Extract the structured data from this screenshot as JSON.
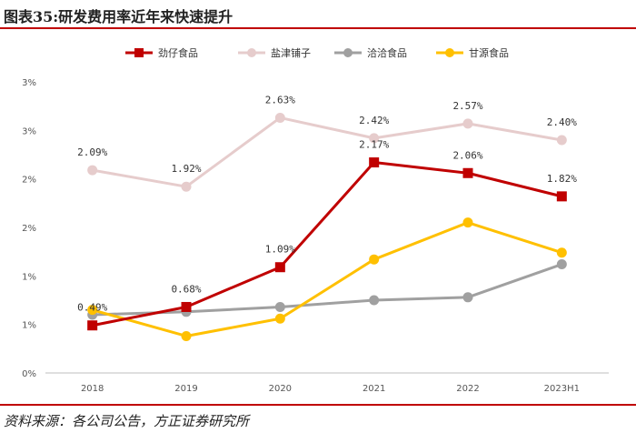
{
  "header": {
    "title": "图表35:研发费用率近年来快速提升"
  },
  "footer": {
    "source": "资料来源：各公司公告，方正证券研究所"
  },
  "chart_data": {
    "type": "line",
    "title": "图表35:研发费用率近年来快速提升",
    "categories": [
      "2018",
      "2019",
      "2020",
      "2021",
      "2022",
      "2023H1"
    ],
    "y_tick_labels": [
      "0%",
      "1%",
      "1%",
      "2%",
      "2%",
      "3%",
      "3%"
    ],
    "ylim": [
      0,
      3.0
    ],
    "grid": false,
    "legend_position": "top",
    "series": [
      {
        "name": "劲仔食品",
        "color": "#c00000",
        "marker": "square",
        "values": [
          0.49,
          0.68,
          1.09,
          2.17,
          2.06,
          1.82
        ],
        "labels": [
          "0.49%",
          "0.68%",
          "1.09%",
          "2.17%",
          "2.06%",
          "1.82%"
        ]
      },
      {
        "name": "盐津铺子",
        "color": "#e6cccc",
        "marker": "circle",
        "values": [
          2.09,
          1.92,
          2.63,
          2.42,
          2.57,
          2.4
        ],
        "labels": [
          "2.09%",
          "1.92%",
          "2.63%",
          "2.42%",
          "2.57%",
          "2.40%"
        ]
      },
      {
        "name": "洽洽食品",
        "color": "#a0a0a0",
        "marker": "circle",
        "values": [
          0.6,
          0.63,
          0.68,
          0.75,
          0.78,
          1.12
        ],
        "labels": []
      },
      {
        "name": "甘源食品",
        "color": "#ffc000",
        "marker": "circle",
        "values": [
          0.65,
          0.38,
          0.56,
          1.17,
          1.55,
          1.24
        ],
        "labels": []
      }
    ]
  }
}
